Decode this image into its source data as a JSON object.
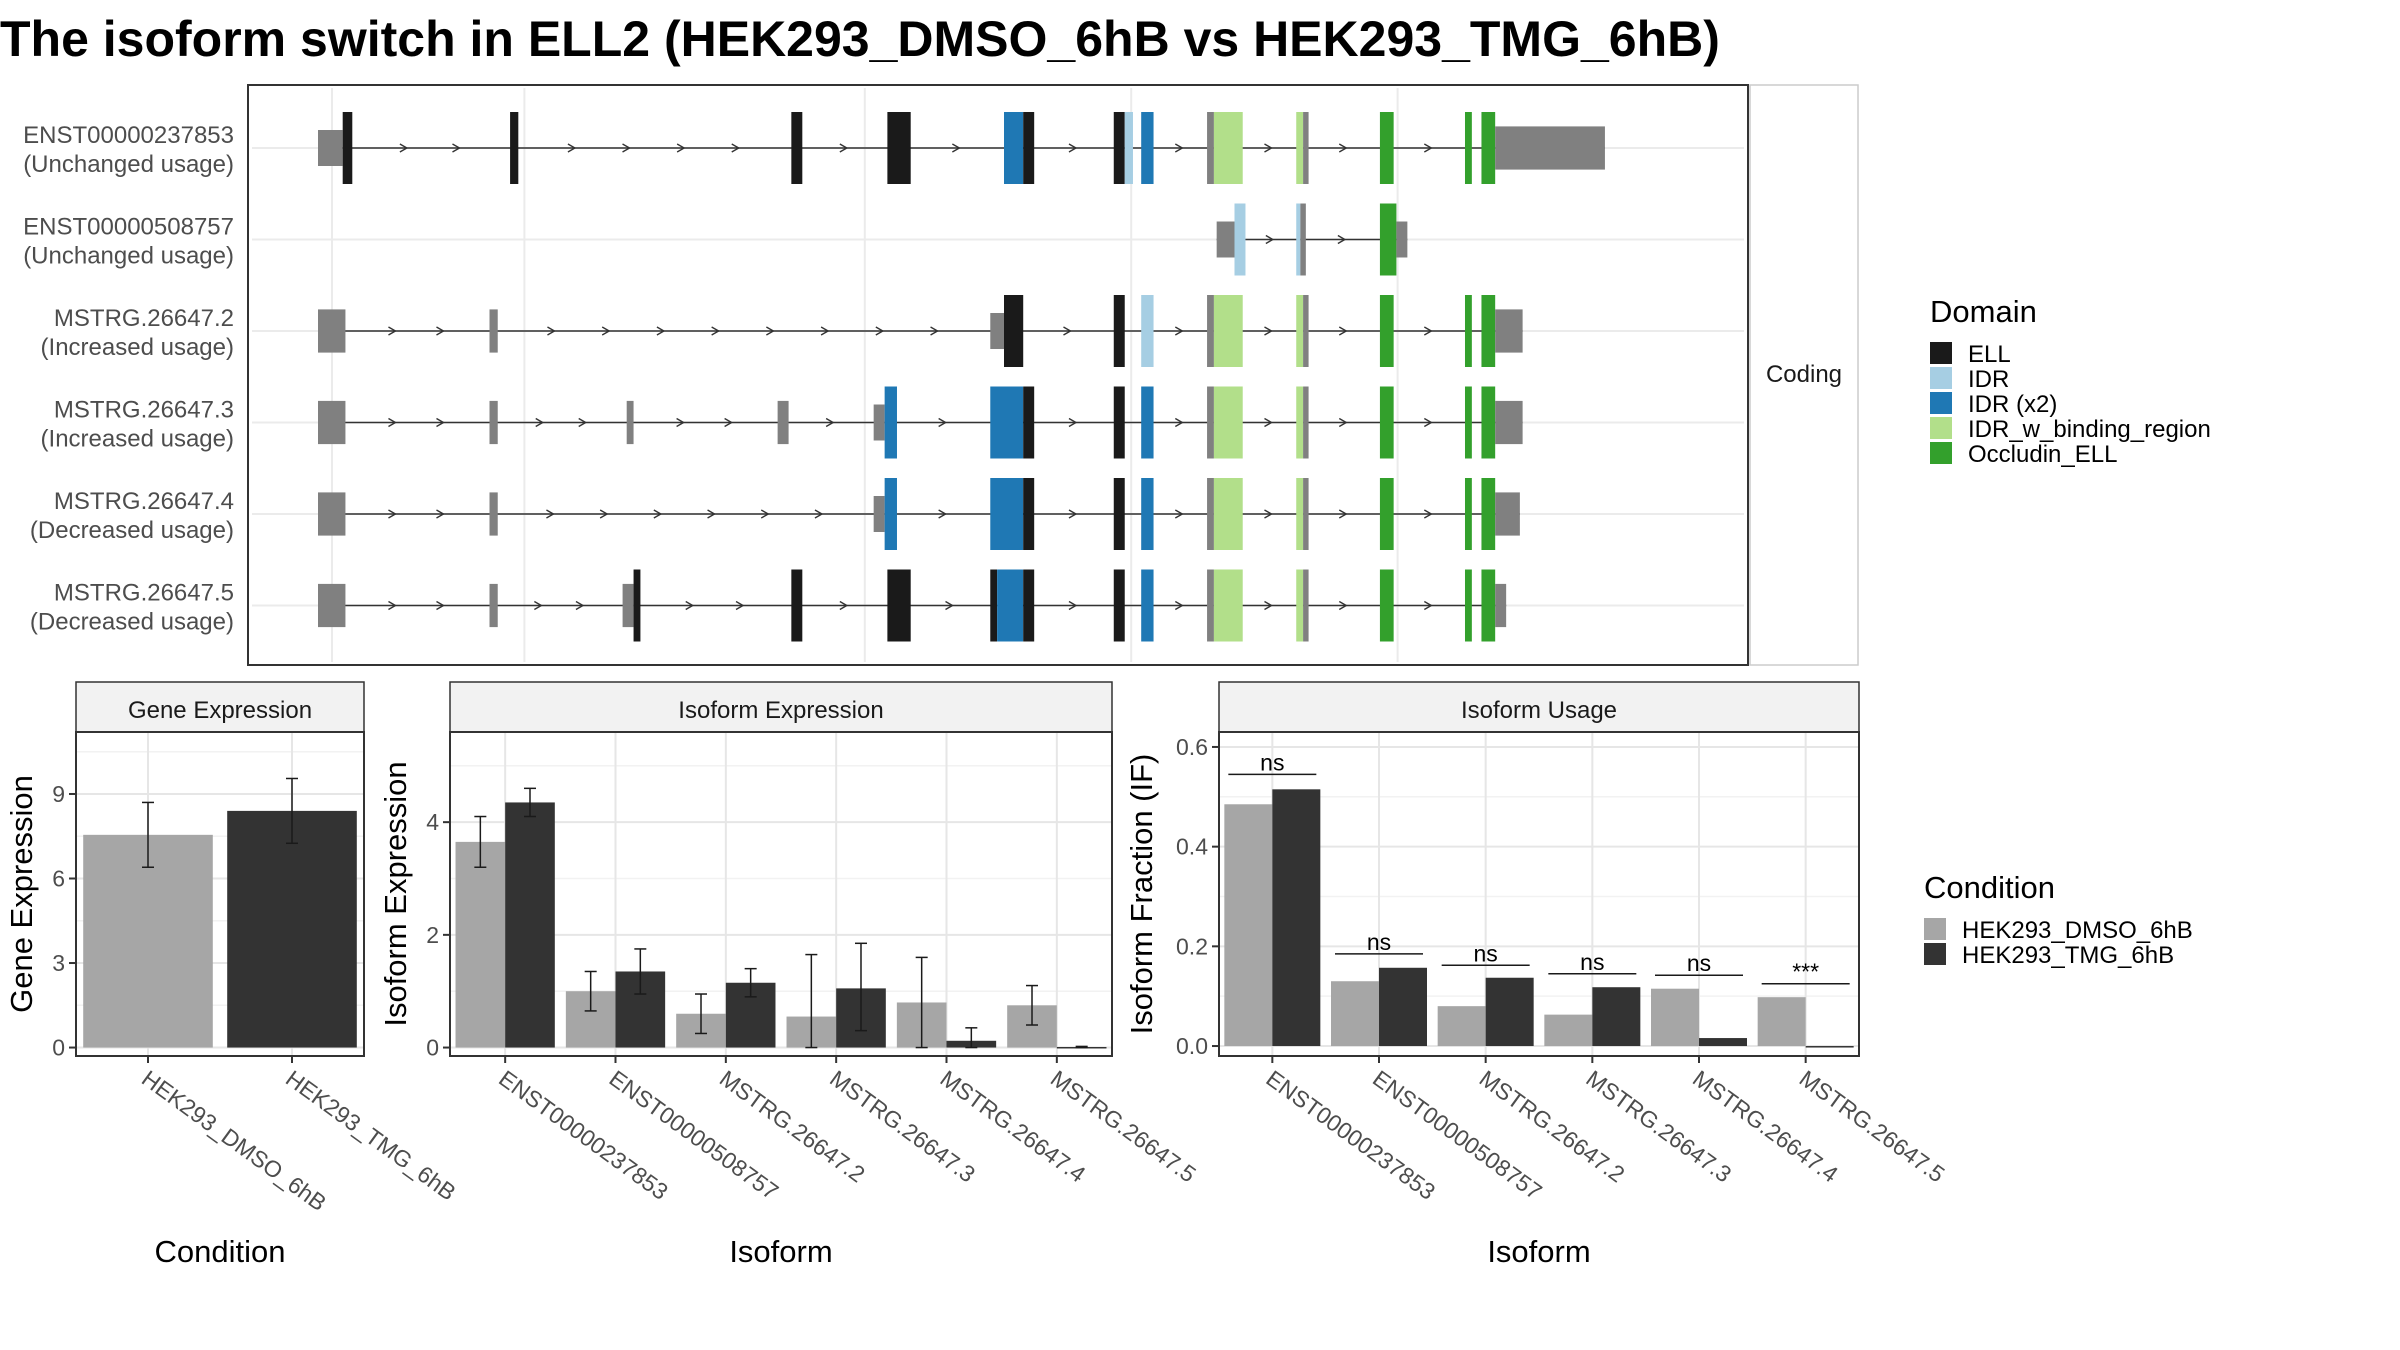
{
  "title": "The isoform switch in ELL2 (HEK293_DMSO_6hB vs HEK293_TMG_6hB)",
  "colors": {
    "ELL": "#1a1a1a",
    "IDR": "#a6cee3",
    "IDR (x2)": "#1f78b4",
    "IDR_w_binding_region": "#b2df8a",
    "Occludin_ELL": "#33a02c",
    "noncoding": "#808080",
    "HEK293_DMSO_6hB": "#a6a6a6",
    "HEK293_TMG_6hB": "#333333"
  },
  "chart_data": [
    {
      "type": "gene-structure",
      "strip_label": "Coding",
      "xlim": [
        0,
        1000
      ],
      "transcripts": [
        {
          "name": "ENST00000237853",
          "usage": "(Unchanged usage)",
          "exons": [
            [
              0,
              18,
              "noncoding",
              0.5
            ],
            [
              18,
              25,
              "ELL",
              1
            ],
            [
              140,
              146,
              "ELL",
              1
            ],
            [
              345,
              353,
              "ELL",
              1
            ],
            [
              415,
              432,
              "ELL",
              1
            ],
            [
              500,
              514,
              "IDR (x2)",
              1
            ],
            [
              514,
              522,
              "ELL",
              1
            ],
            [
              580,
              588,
              "ELL",
              1
            ],
            [
              588,
              594,
              "IDR",
              1
            ],
            [
              600,
              609,
              "IDR (x2)",
              1
            ],
            [
              648,
              653,
              "noncoding",
              1
            ],
            [
              653,
              674,
              "IDR_w_binding_region",
              1
            ],
            [
              713,
              718,
              "IDR_w_binding_region",
              1
            ],
            [
              718,
              722,
              "noncoding",
              1
            ],
            [
              774,
              784,
              "Occludin_ELL",
              1
            ],
            [
              836,
              841,
              "Occludin_ELL",
              1
            ],
            [
              848,
              858,
              "Occludin_ELL",
              1
            ],
            [
              858,
              938,
              "noncoding",
              0.6
            ]
          ]
        },
        {
          "name": "ENST00000508757",
          "usage": "(Unchanged usage)",
          "exons": [
            [
              655,
              668,
              "noncoding",
              0.5
            ],
            [
              668,
              676,
              "IDR",
              1
            ],
            [
              713,
              716,
              "IDR",
              1
            ],
            [
              716,
              720,
              "noncoding",
              1
            ],
            [
              774,
              786,
              "Occludin_ELL",
              1
            ],
            [
              786,
              794,
              "noncoding",
              0.5
            ]
          ]
        },
        {
          "name": "MSTRG.26647.2",
          "usage": "(Increased usage)",
          "exons": [
            [
              0,
              20,
              "noncoding",
              0.6
            ],
            [
              125,
              131,
              "noncoding",
              0.6
            ],
            [
              490,
              500,
              "noncoding",
              0.5
            ],
            [
              500,
              514,
              "ELL",
              1
            ],
            [
              580,
              588,
              "ELL",
              1
            ],
            [
              600,
              609,
              "IDR",
              1
            ],
            [
              648,
              653,
              "noncoding",
              1
            ],
            [
              653,
              674,
              "IDR_w_binding_region",
              1
            ],
            [
              713,
              718,
              "IDR_w_binding_region",
              1
            ],
            [
              718,
              722,
              "noncoding",
              1
            ],
            [
              774,
              784,
              "Occludin_ELL",
              1
            ],
            [
              836,
              841,
              "Occludin_ELL",
              1
            ],
            [
              848,
              858,
              "Occludin_ELL",
              1
            ],
            [
              858,
              878,
              "noncoding",
              0.6
            ]
          ]
        },
        {
          "name": "MSTRG.26647.3",
          "usage": "(Increased usage)",
          "exons": [
            [
              0,
              20,
              "noncoding",
              0.6
            ],
            [
              125,
              131,
              "noncoding",
              0.6
            ],
            [
              225,
              230,
              "noncoding",
              0.6
            ],
            [
              335,
              343,
              "noncoding",
              0.6
            ],
            [
              405,
              413,
              "noncoding",
              0.5
            ],
            [
              413,
              422,
              "IDR (x2)",
              1
            ],
            [
              490,
              514,
              "IDR (x2)",
              1
            ],
            [
              514,
              522,
              "ELL",
              1
            ],
            [
              580,
              588,
              "ELL",
              1
            ],
            [
              600,
              609,
              "IDR (x2)",
              1
            ],
            [
              648,
              653,
              "noncoding",
              1
            ],
            [
              653,
              674,
              "IDR_w_binding_region",
              1
            ],
            [
              713,
              718,
              "IDR_w_binding_region",
              1
            ],
            [
              718,
              722,
              "noncoding",
              1
            ],
            [
              774,
              784,
              "Occludin_ELL",
              1
            ],
            [
              836,
              841,
              "Occludin_ELL",
              1
            ],
            [
              848,
              858,
              "Occludin_ELL",
              1
            ],
            [
              858,
              878,
              "noncoding",
              0.6
            ]
          ]
        },
        {
          "name": "MSTRG.26647.4",
          "usage": "(Decreased usage)",
          "exons": [
            [
              0,
              20,
              "noncoding",
              0.6
            ],
            [
              125,
              131,
              "noncoding",
              0.6
            ],
            [
              405,
              413,
              "noncoding",
              0.5
            ],
            [
              413,
              422,
              "IDR (x2)",
              1
            ],
            [
              490,
              514,
              "IDR (x2)",
              1
            ],
            [
              514,
              522,
              "ELL",
              1
            ],
            [
              580,
              588,
              "ELL",
              1
            ],
            [
              600,
              609,
              "IDR (x2)",
              1
            ],
            [
              648,
              653,
              "noncoding",
              1
            ],
            [
              653,
              674,
              "IDR_w_binding_region",
              1
            ],
            [
              713,
              718,
              "IDR_w_binding_region",
              1
            ],
            [
              718,
              722,
              "noncoding",
              1
            ],
            [
              774,
              784,
              "Occludin_ELL",
              1
            ],
            [
              836,
              841,
              "Occludin_ELL",
              1
            ],
            [
              848,
              858,
              "Occludin_ELL",
              1
            ],
            [
              858,
              876,
              "noncoding",
              0.6
            ]
          ]
        },
        {
          "name": "MSTRG.26647.5",
          "usage": "(Decreased usage)",
          "exons": [
            [
              0,
              20,
              "noncoding",
              0.6
            ],
            [
              125,
              131,
              "noncoding",
              0.6
            ],
            [
              222,
              230,
              "noncoding",
              0.6
            ],
            [
              230,
              235,
              "ELL",
              1
            ],
            [
              345,
              353,
              "ELL",
              1
            ],
            [
              415,
              432,
              "ELL",
              1
            ],
            [
              490,
              495,
              "ELL",
              1
            ],
            [
              495,
              514,
              "IDR (x2)",
              1
            ],
            [
              514,
              522,
              "ELL",
              1
            ],
            [
              580,
              588,
              "ELL",
              1
            ],
            [
              600,
              609,
              "IDR (x2)",
              1
            ],
            [
              648,
              653,
              "noncoding",
              1
            ],
            [
              653,
              674,
              "IDR_w_binding_region",
              1
            ],
            [
              713,
              718,
              "IDR_w_binding_region",
              1
            ],
            [
              718,
              722,
              "noncoding",
              1
            ],
            [
              774,
              784,
              "Occludin_ELL",
              1
            ],
            [
              836,
              841,
              "Occludin_ELL",
              1
            ],
            [
              848,
              858,
              "Occludin_ELL",
              1
            ],
            [
              858,
              866,
              "noncoding",
              0.6
            ]
          ]
        }
      ],
      "legend": {
        "title": "Domain",
        "entries": [
          "ELL",
          "IDR",
          "IDR (x2)",
          "IDR_w_binding_region",
          "Occludin_ELL"
        ]
      }
    },
    {
      "type": "bar",
      "title": "Gene Expression",
      "xlabel": "Condition",
      "ylabel": "Gene Expression",
      "ylim": [
        -0.3,
        11.2
      ],
      "yticks": [
        0,
        3,
        6,
        9
      ],
      "categories": [
        "HEK293_DMSO_6hB",
        "HEK293_TMG_6hB"
      ],
      "values": [
        7.55,
        8.4
      ],
      "error_low": [
        6.4,
        7.25
      ],
      "error_high": [
        8.7,
        9.55
      ]
    },
    {
      "type": "bar",
      "title": "Isoform Expression",
      "xlabel": "Isoform",
      "ylabel": "Isoform Expression",
      "ylim": [
        -0.15,
        5.6
      ],
      "yticks": [
        0,
        2,
        4
      ],
      "categories": [
        "ENST00000237853",
        "ENST00000508757",
        "MSTRG.26647.2",
        "MSTRG.26647.3",
        "MSTRG.26647.4",
        "MSTRG.26647.5"
      ],
      "series": [
        {
          "name": "HEK293_DMSO_6hB",
          "values": [
            3.65,
            1.0,
            0.6,
            0.55,
            0.8,
            0.75
          ],
          "error_low": [
            3.2,
            0.65,
            0.25,
            0.0,
            0.0,
            0.4
          ],
          "error_high": [
            4.1,
            1.35,
            0.95,
            1.65,
            1.6,
            1.1
          ]
        },
        {
          "name": "HEK293_TMG_6hB",
          "values": [
            4.35,
            1.35,
            1.15,
            1.05,
            0.12,
            0.01
          ],
          "error_low": [
            4.1,
            0.95,
            0.9,
            0.3,
            0.0,
            0.0
          ],
          "error_high": [
            4.6,
            1.75,
            1.4,
            1.85,
            0.35,
            0.02
          ]
        }
      ]
    },
    {
      "type": "bar",
      "title": "Isoform Usage",
      "xlabel": "Isoform",
      "ylabel": "Isoform Fraction (IF)",
      "ylim": [
        -0.02,
        0.63
      ],
      "yticks": [
        0.0,
        0.2,
        0.4,
        0.6
      ],
      "ytick_labels": [
        "0.0",
        "0.2",
        "0.4",
        "0.6"
      ],
      "categories": [
        "ENST00000237853",
        "ENST00000508757",
        "MSTRG.26647.2",
        "MSTRG.26647.3",
        "MSTRG.26647.4",
        "MSTRG.26647.5"
      ],
      "series": [
        {
          "name": "HEK293_DMSO_6hB",
          "values": [
            0.485,
            0.13,
            0.08,
            0.063,
            0.115,
            0.098
          ]
        },
        {
          "name": "HEK293_TMG_6hB",
          "values": [
            0.515,
            0.157,
            0.137,
            0.118,
            0.016,
            0.0
          ]
        }
      ],
      "significance": [
        "ns",
        "ns",
        "ns",
        "ns",
        "ns",
        "***"
      ],
      "sig_y": [
        0.545,
        0.185,
        0.162,
        0.145,
        0.142,
        0.125
      ],
      "legend": {
        "title": "Condition",
        "entries": [
          "HEK293_DMSO_6hB",
          "HEK293_TMG_6hB"
        ]
      }
    }
  ]
}
